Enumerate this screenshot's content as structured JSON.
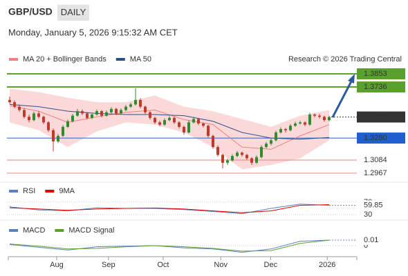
{
  "header": {
    "symbol": "GBP/USD",
    "period": "DAILY",
    "timestamp": "Monday, January 5, 2026 9:15:32 AM CET",
    "credit": "Research © 2026 Trading Central"
  },
  "chart_data": [
    {
      "type": "candlestick",
      "xlim": [
        0,
        66
      ],
      "ylim": [
        1.2899,
        1.3927
      ],
      "xticks": [
        {
          "value": 9.7,
          "label": "Aug"
        },
        {
          "value": 20.4,
          "label": "Sep"
        },
        {
          "value": 31.7,
          "label": "Oct"
        },
        {
          "value": 43.6,
          "label": "Nov"
        },
        {
          "value": 53.9,
          "label": "Dec"
        },
        {
          "value": 65.6,
          "label": "2026"
        }
      ],
      "up_color": "#2e8b2e",
      "down_color": "#c0392b",
      "candles": [
        [
          1.362,
          1.365,
          1.3585,
          1.36
        ],
        [
          1.36,
          1.3615,
          1.3545,
          1.356
        ],
        [
          1.356,
          1.358,
          1.3515,
          1.353
        ],
        [
          1.353,
          1.3545,
          1.3455,
          1.347
        ],
        [
          1.347,
          1.349,
          1.342,
          1.344
        ],
        [
          1.344,
          1.3515,
          1.343,
          1.35
        ],
        [
          1.35,
          1.352,
          1.3455,
          1.347
        ],
        [
          1.347,
          1.348,
          1.3405,
          1.342
        ],
        [
          1.342,
          1.343,
          1.3335,
          1.335
        ],
        [
          1.335,
          1.3365,
          1.316,
          1.325
        ],
        [
          1.325,
          1.3315,
          1.3235,
          1.33
        ],
        [
          1.33,
          1.3395,
          1.329,
          1.338
        ],
        [
          1.338,
          1.3445,
          1.337,
          1.343
        ],
        [
          1.343,
          1.3495,
          1.342,
          1.348
        ],
        [
          1.348,
          1.354,
          1.347,
          1.352
        ],
        [
          1.352,
          1.3535,
          1.3485,
          1.35
        ],
        [
          1.35,
          1.351,
          1.3445,
          1.346
        ],
        [
          1.346,
          1.3505,
          1.345,
          1.349
        ],
        [
          1.349,
          1.3535,
          1.348,
          1.352
        ],
        [
          1.352,
          1.353,
          1.3465,
          1.348
        ],
        [
          1.348,
          1.3525,
          1.347,
          1.351
        ],
        [
          1.351,
          1.3555,
          1.35,
          1.354
        ],
        [
          1.354,
          1.355,
          1.3485,
          1.35
        ],
        [
          1.35,
          1.3545,
          1.349,
          1.353
        ],
        [
          1.353,
          1.3575,
          1.352,
          1.356
        ],
        [
          1.356,
          1.3595,
          1.355,
          1.358
        ],
        [
          1.358,
          1.3725,
          1.357,
          1.362
        ],
        [
          1.362,
          1.3635,
          1.3545,
          1.356
        ],
        [
          1.356,
          1.357,
          1.3495,
          1.351
        ],
        [
          1.351,
          1.352,
          1.3445,
          1.346
        ],
        [
          1.346,
          1.347,
          1.3405,
          1.342
        ],
        [
          1.342,
          1.3435,
          1.3385,
          1.34
        ],
        [
          1.34,
          1.3455,
          1.339,
          1.344
        ],
        [
          1.344,
          1.3475,
          1.343,
          1.346
        ],
        [
          1.346,
          1.347,
          1.3405,
          1.342
        ],
        [
          1.342,
          1.343,
          1.3365,
          1.338
        ],
        [
          1.338,
          1.339,
          1.331,
          1.333
        ],
        [
          1.333,
          1.3435,
          1.332,
          1.342
        ],
        [
          1.342,
          1.347,
          1.341,
          1.345
        ],
        [
          1.345,
          1.346,
          1.3395,
          1.341
        ],
        [
          1.341,
          1.342,
          1.3375,
          1.339
        ],
        [
          1.339,
          1.34,
          1.3285,
          1.33
        ],
        [
          1.33,
          1.331,
          1.3185,
          1.32
        ],
        [
          1.32,
          1.3215,
          1.3115,
          1.313
        ],
        [
          1.313,
          1.314,
          1.301,
          1.306
        ],
        [
          1.306,
          1.3095,
          1.304,
          1.308
        ],
        [
          1.308,
          1.3135,
          1.307,
          1.312
        ],
        [
          1.312,
          1.3165,
          1.311,
          1.315
        ],
        [
          1.315,
          1.316,
          1.3115,
          1.313
        ],
        [
          1.313,
          1.314,
          1.3085,
          1.31
        ],
        [
          1.31,
          1.311,
          1.304,
          1.306
        ],
        [
          1.306,
          1.3125,
          1.305,
          1.311
        ],
        [
          1.311,
          1.3215,
          1.31,
          1.32
        ],
        [
          1.32,
          1.3245,
          1.319,
          1.323
        ],
        [
          1.323,
          1.3275,
          1.3215,
          1.326
        ],
        [
          1.326,
          1.3345,
          1.325,
          1.333
        ],
        [
          1.333,
          1.3375,
          1.332,
          1.336
        ],
        [
          1.336,
          1.337,
          1.333,
          1.335
        ],
        [
          1.335,
          1.3405,
          1.334,
          1.339
        ],
        [
          1.339,
          1.3425,
          1.338,
          1.341
        ],
        [
          1.341,
          1.3435,
          1.34,
          1.342
        ],
        [
          1.342,
          1.343,
          1.3385,
          1.34
        ],
        [
          1.34,
          1.3505,
          1.339,
          1.349
        ],
        [
          1.349,
          1.35,
          1.3465,
          1.348
        ],
        [
          1.348,
          1.3495,
          1.3455,
          1.347
        ],
        [
          1.347,
          1.348,
          1.3425,
          1.344
        ],
        [
          1.344,
          1.348,
          1.343,
          1.3468
        ]
      ],
      "series": [
        {
          "name": "MA 20 + Bollinger Bands",
          "color": "#f08080",
          "band_color": "#fcd9d9",
          "x": [
            0,
            6,
            12,
            18,
            24,
            30,
            36,
            42,
            48,
            54,
            60,
            66
          ],
          "values": [
            1.357,
            1.352,
            1.342,
            1.347,
            1.351,
            1.353,
            1.3445,
            1.34,
            1.32,
            1.318,
            1.33,
            1.34
          ],
          "upper": [
            1.372,
            1.369,
            1.364,
            1.36,
            1.36,
            1.366,
            1.356,
            1.352,
            1.345,
            1.338,
            1.348,
            1.353
          ],
          "lower": [
            1.342,
            1.335,
            1.32,
            1.334,
            1.342,
            1.34,
            1.333,
            1.32,
            1.3,
            1.304,
            1.31,
            1.326
          ]
        },
        {
          "name": "MA 50",
          "color": "#2c4f8a",
          "x": [
            0,
            6,
            12,
            18,
            24,
            30,
            36,
            42,
            48,
            54,
            60,
            66
          ],
          "values": [
            1.358,
            1.356,
            1.352,
            1.35,
            1.349,
            1.349,
            1.348,
            1.343,
            1.333,
            1.328,
            1.327,
            1.3285
          ]
        }
      ],
      "levels": {
        "values": [
          1.3853,
          1.3736,
          1.328,
          1.3084,
          1.2967
        ],
        "value_labels": [
          "1.3853",
          "1.3736",
          "1.3280",
          "1.3084",
          "1.2967"
        ],
        "colors": [
          "#5aa02c",
          "#5aa02c",
          "#1f5fcf",
          "#f08080",
          "#f08080"
        ],
        "label_colors": [
          "#5aa02c",
          "#5aa02c",
          "#1f5fcf",
          null,
          null
        ]
      }
    },
    {
      "type": "line",
      "xlim": [
        0,
        66
      ],
      "ylim": [
        0,
        100
      ],
      "yticks": [
        30,
        70
      ],
      "series": [
        {
          "name": "RSI",
          "color": "#5b7fc7",
          "x": [
            0,
            6,
            12,
            18,
            24,
            30,
            36,
            42,
            48,
            54,
            60,
            66
          ],
          "values": [
            55,
            45,
            42,
            52,
            50,
            50,
            46,
            40,
            33,
            50,
            64,
            59.85
          ]
        },
        {
          "name": "9MA",
          "color": "#e00000",
          "x": [
            0,
            6,
            12,
            18,
            24,
            30,
            36,
            42,
            48,
            54,
            60,
            66
          ],
          "values": [
            52,
            48,
            44,
            48,
            50,
            51,
            48,
            42,
            36,
            42,
            60,
            62
          ]
        }
      ]
    },
    {
      "type": "line",
      "xlim": [
        0,
        66
      ],
      "ylim": [
        -0.02,
        0.0325
      ],
      "yticks": [
        0
      ],
      "series": [
        {
          "name": "MACD",
          "color": "#5b7fc7",
          "x": [
            0,
            6,
            12,
            18,
            24,
            30,
            36,
            42,
            48,
            54,
            60,
            66
          ],
          "values": [
            0.002,
            -0.003,
            -0.008,
            -0.002,
            -0.001,
            0.0,
            -0.004,
            -0.006,
            -0.012,
            -0.006,
            0.008,
            0.01
          ]
        },
        {
          "name": "MACD Signal",
          "color": "#5aa02c",
          "x": [
            0,
            6,
            12,
            18,
            24,
            30,
            36,
            42,
            48,
            54,
            60,
            66
          ],
          "values": [
            0.003,
            -0.001,
            -0.006,
            -0.005,
            -0.002,
            0.0,
            -0.002,
            -0.005,
            -0.01,
            -0.009,
            0.004,
            0.01
          ]
        }
      ]
    }
  ]
}
